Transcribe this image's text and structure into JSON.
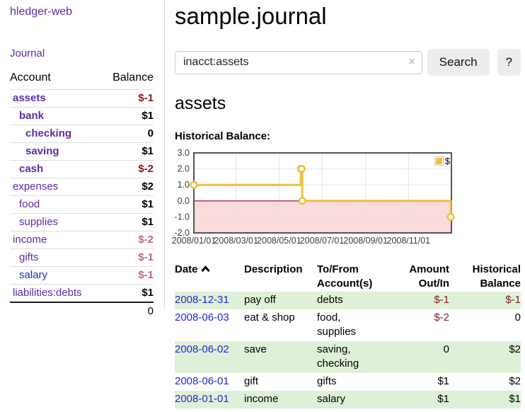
{
  "app": {
    "brand": "hledger-web"
  },
  "sidebar": {
    "nav_journal": "Journal",
    "accounts": {
      "col_account": "Account",
      "col_balance": "Balance",
      "rows": [
        {
          "name": "assets",
          "indent": 0,
          "bold": true,
          "balance": "$-1"
        },
        {
          "name": "bank",
          "indent": 1,
          "bold": true,
          "balance": "$1"
        },
        {
          "name": "checking",
          "indent": 2,
          "bold": true,
          "balance": "0"
        },
        {
          "name": "saving",
          "indent": 2,
          "bold": true,
          "balance": "$1"
        },
        {
          "name": "cash",
          "indent": 1,
          "bold": true,
          "balance": "$-2"
        },
        {
          "name": "expenses",
          "indent": 0,
          "bold": false,
          "balance": "$2"
        },
        {
          "name": "food",
          "indent": 1,
          "bold": false,
          "balance": "$1"
        },
        {
          "name": "supplies",
          "indent": 1,
          "bold": false,
          "balance": "$1"
        },
        {
          "name": "income",
          "indent": 0,
          "bold": false,
          "balance": "$-2"
        },
        {
          "name": "gifts",
          "indent": 1,
          "bold": false,
          "balance": "$-1"
        },
        {
          "name": "salary",
          "indent": 1,
          "bold": false,
          "balance": "$-1",
          "link_color": "blue"
        },
        {
          "name": "liabilities:debts",
          "indent": 0,
          "bold": false,
          "balance": "$1"
        }
      ],
      "total": "0"
    }
  },
  "header": {
    "title": "sample.journal"
  },
  "search": {
    "query": "inacct:assets",
    "clear_icon": "×",
    "button": "Search",
    "help_button": "?"
  },
  "account_page": {
    "heading": "assets",
    "chart_label": "Historical Balance:"
  },
  "chart_data": {
    "type": "line",
    "step": true,
    "series": [
      {
        "name": "$",
        "points": [
          {
            "date": "2008-01-01",
            "value": 1
          },
          {
            "date": "2008-06-01",
            "value": 2
          },
          {
            "date": "2008-06-02",
            "value": 2
          },
          {
            "date": "2008-06-03",
            "value": 0
          },
          {
            "date": "2008-12-31",
            "value": -1
          }
        ]
      }
    ],
    "ylim": [
      -2,
      3
    ],
    "y_tick_labels": [
      "3.0",
      "2.0",
      "1.0",
      "0.0",
      "-1.0",
      "-2.0"
    ],
    "y_tick_values": [
      3,
      2,
      1,
      0,
      -1,
      -2
    ],
    "x_tick_labels": [
      "2008/01/01",
      "2008/03/01",
      "2008/05/01",
      "2008/07/01",
      "2008/09/01",
      "2008/11/01"
    ],
    "x_tick_dates": [
      "2008-01-01",
      "2008-03-01",
      "2008-05-01",
      "2008-07-01",
      "2008-09-01",
      "2008-11-01"
    ],
    "x_range_days": 366,
    "grid": true,
    "legend_position": "top-right",
    "legend": [
      {
        "label": "$",
        "color": "#edc240"
      }
    ]
  },
  "register_table": {
    "headers": {
      "date": "Date",
      "description": "Description",
      "accounts": "To/From Account(s)",
      "amount": "Amount Out/In",
      "balance": "Historical Balance"
    },
    "sort_indicator": "chevron-up",
    "rows": [
      {
        "date": "2008-12-31",
        "description": "pay off",
        "accounts": [
          "debts"
        ],
        "amount": "$-1",
        "balance": "$-1"
      },
      {
        "date": "2008-06-03",
        "description": "eat & shop",
        "accounts": [
          "food",
          "supplies"
        ],
        "amount": "$-2",
        "balance": "0"
      },
      {
        "date": "2008-06-02",
        "description": "save",
        "accounts": [
          "saving",
          "checking"
        ],
        "amount": "0",
        "balance": "$2"
      },
      {
        "date": "2008-06-01",
        "description": "gift",
        "accounts": [
          "gifts"
        ],
        "amount": "$1",
        "balance": "$2"
      },
      {
        "date": "2008-01-01",
        "description": "income",
        "accounts": [
          "salary"
        ],
        "amount": "$1",
        "balance": "$1"
      }
    ]
  },
  "colors": {
    "link_purple": "#5e2ca5",
    "link_blue": "#2427d6",
    "negative_strong": "#8b1717",
    "negative_soft": "#bd6a6a",
    "row_stripe_green": "#dff0d8",
    "chart_line": "#edc240",
    "chart_negative_region": "#fbdbdb",
    "chart_zero_line": "#8c0d0d",
    "chart_grid": "#e4e4e4",
    "chart_border": "#545454",
    "button_bg": "#ececec"
  }
}
